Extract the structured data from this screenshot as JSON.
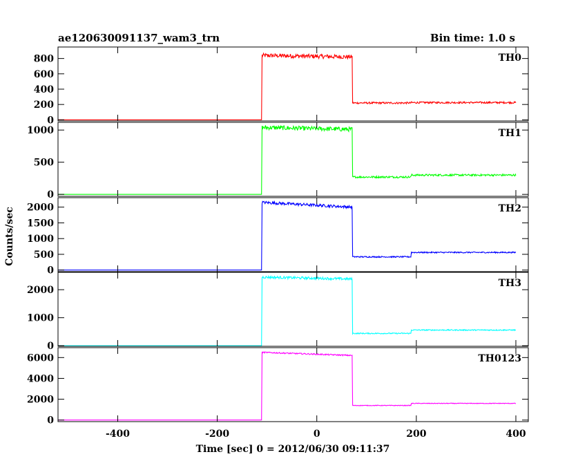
{
  "chart_data": {
    "type": "line",
    "title": "ae120630091137_wam3_trn",
    "bin_time_label": "Bin time: 1.0 s",
    "xlabel": "Time [sec] 0 = 2012/06/30 09:11:37",
    "ylabel": "Counts/sec",
    "xlim": [
      -520,
      425
    ],
    "xticks": [
      -400,
      -200,
      0,
      200,
      400
    ],
    "step_times": {
      "rise": -110,
      "fall": 72,
      "step": 190,
      "end": 400,
      "start": -520
    },
    "panels": [
      {
        "name": "TH0",
        "color": "#ff0000",
        "ylim": [
          -15,
          950
        ],
        "yticks": [
          0,
          200,
          400,
          600,
          800
        ],
        "levels": {
          "pre": 0,
          "burst_start": 840,
          "burst_end": 820,
          "post": 220,
          "late": 225
        },
        "noise": {
          "burst": 28,
          "post": 12
        }
      },
      {
        "name": "TH1",
        "color": "#00ff00",
        "ylim": [
          -30,
          1120
        ],
        "yticks": [
          0,
          500,
          1000
        ],
        "levels": {
          "pre": 0,
          "burst_start": 1040,
          "burst_end": 1010,
          "post": 270,
          "late": 300
        },
        "noise": {
          "burst": 35,
          "post": 15
        }
      },
      {
        "name": "TH2",
        "color": "#0000ff",
        "ylim": [
          -50,
          2300
        ],
        "yticks": [
          0,
          500,
          1000,
          1500,
          2000
        ],
        "levels": {
          "pre": 0,
          "burst_start": 2150,
          "burst_end": 2000,
          "post": 420,
          "late": 560
        },
        "noise": {
          "burst": 45,
          "post": 20
        }
      },
      {
        "name": "TH3",
        "color": "#00ffff",
        "ylim": [
          -20,
          2620
        ],
        "yticks": [
          0,
          1000,
          2000
        ],
        "levels": {
          "pre": 0,
          "burst_start": 2450,
          "burst_end": 2380,
          "post": 440,
          "late": 560
        },
        "noise": {
          "burst": 45,
          "post": 20
        }
      },
      {
        "name": "TH0123",
        "color": "#ff00ff",
        "ylim": [
          -150,
          6950
        ],
        "yticks": [
          0,
          2000,
          4000,
          6000
        ],
        "levels": {
          "pre": 0,
          "burst_start": 6500,
          "burst_end": 6200,
          "post": 1400,
          "late": 1600
        },
        "noise": {
          "burst": 60,
          "post": 30
        }
      }
    ]
  }
}
